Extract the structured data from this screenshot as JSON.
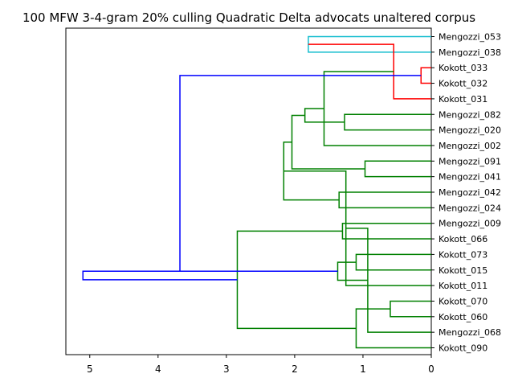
{
  "chart_data": {
    "type": "dendrogram",
    "orientation": "left",
    "title": "100 MFW 3-4-gram 20% culling Quadratic Delta advocats unaltered corpus",
    "xlim": [
      5.35,
      0
    ],
    "x_ticks": [
      5,
      4,
      3,
      2,
      1,
      0
    ],
    "grid": false,
    "leaves": [
      "Mengozzi_053",
      "Mengozzi_038",
      "Kokott_033",
      "Kokott_032",
      "Kokott_031",
      "Mengozzi_082",
      "Mengozzi_020",
      "Mengozzi_002",
      "Mengozzi_091",
      "Mengozzi_041",
      "Mengozzi_042",
      "Mengozzi_024",
      "Mengozzi_009",
      "Kokott_066",
      "Kokott_073",
      "Kokott_015",
      "Kokott_011",
      "Kokott_070",
      "Kokott_060",
      "Mengozzi_068",
      "Kokott_090"
    ],
    "colors": {
      "cyan": "#17becf",
      "red": "#ff0000",
      "green": "#008000",
      "blue": "#0000ff"
    },
    "links": [
      {
        "a": 0,
        "b": 1,
        "h": 1.8,
        "color": "cyan"
      },
      {
        "a": 2,
        "b": 3,
        "h": 0.15,
        "color": "red"
      },
      {
        "a": 21,
        "b": 4,
        "h": 0.55,
        "color": "red"
      },
      {
        "a": 5,
        "b": 6,
        "h": 1.27,
        "color": "green"
      },
      {
        "a": 23,
        "b": 7,
        "h": 1.57,
        "color": "green"
      },
      {
        "a": 8,
        "b": 9,
        "h": 0.97,
        "color": "green"
      },
      {
        "a": 24,
        "b": 25,
        "h": 1.85,
        "color": "green"
      },
      {
        "a": 10,
        "b": 11,
        "h": 1.35,
        "color": "green"
      },
      {
        "a": 26,
        "b": 27,
        "h": 2.04,
        "color": "green"
      },
      {
        "a": 12,
        "b": 13,
        "h": 1.3,
        "color": "green"
      },
      {
        "a": 28,
        "b": 29,
        "h": 2.16,
        "color": "green"
      },
      {
        "a": 14,
        "b": 15,
        "h": 1.1,
        "color": "green"
      },
      {
        "a": 31,
        "b": 16,
        "h": 1.25,
        "color": "green"
      },
      {
        "a": 17,
        "b": 18,
        "h": 0.6,
        "color": "green"
      },
      {
        "a": 33,
        "b": 19,
        "h": 0.93,
        "color": "green"
      },
      {
        "a": 34,
        "b": 20,
        "h": 1.1,
        "color": "green"
      },
      {
        "a": 32,
        "b": 35,
        "h": 1.37,
        "color": "green"
      },
      {
        "a": 30,
        "b": 36,
        "h": 2.84,
        "color": "green"
      },
      {
        "a": 22,
        "b": 37,
        "h": 3.68,
        "color": "blue"
      },
      {
        "a": 38,
        "b": 37,
        "h": 5.1,
        "color": "blue"
      }
    ]
  }
}
